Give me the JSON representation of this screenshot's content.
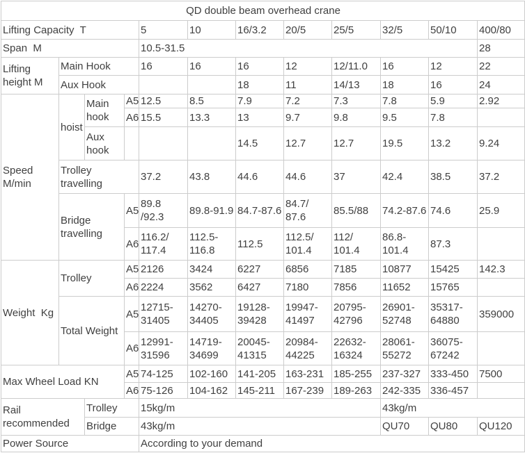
{
  "table": {
    "colors": {
      "text": "#404040",
      "border": "#cccccc",
      "background": "#ffffff"
    },
    "title": "QD double beam overhead crane",
    "rows": [
      {
        "name": "title-row",
        "cells": [
          {
            "t": "QD double beam overhead crane",
            "cs": 12,
            "center": true,
            "name": "table-title"
          }
        ]
      },
      {
        "name": "lifting-capacity-row",
        "cells": [
          {
            "t": "Lifting Capacity  T",
            "cs": 4,
            "name": "label-lifting-capacity"
          },
          {
            "t": "5",
            "name": "capacity-col-header"
          },
          {
            "t": "10",
            "name": "capacity-col-header"
          },
          {
            "t": "16/3.2",
            "name": "capacity-col-header"
          },
          {
            "t": "20/5",
            "name": "capacity-col-header"
          },
          {
            "t": "25/5",
            "name": "capacity-col-header"
          },
          {
            "t": "32/5",
            "name": "capacity-col-header"
          },
          {
            "t": "50/10",
            "name": "capacity-col-header"
          },
          {
            "t": "400/80",
            "name": "capacity-col-header"
          }
        ]
      },
      {
        "name": "span-row",
        "cells": [
          {
            "t": "Span  M",
            "cs": 4,
            "name": "label-span"
          },
          {
            "t": "10.5-31.5",
            "cs": 7
          },
          {
            "t": "28"
          }
        ]
      },
      {
        "name": "lifting-height-main-hook-row",
        "cells": [
          {
            "t": "Lifting\nheight M",
            "rs": 2,
            "name": "label-lifting-height"
          },
          {
            "t": "Main Hook",
            "cs": 3,
            "name": "label-main-hook"
          },
          {
            "t": "16"
          },
          {
            "t": "16"
          },
          {
            "t": "16"
          },
          {
            "t": "12"
          },
          {
            "t": "12/11.0"
          },
          {
            "t": "16"
          },
          {
            "t": "12"
          },
          {
            "t": "22"
          }
        ]
      },
      {
        "name": "lifting-height-aux-hook-row",
        "cells": [
          {
            "t": "Aux Hook",
            "cs": 3,
            "name": "label-aux-hook"
          },
          {
            "t": ""
          },
          {
            "t": ""
          },
          {
            "t": "18"
          },
          {
            "t": "11"
          },
          {
            "t": "14/13"
          },
          {
            "t": "18"
          },
          {
            "t": "16"
          },
          {
            "t": "24"
          }
        ]
      },
      {
        "name": "speed-hoist-main-a5-row",
        "cells": [
          {
            "t": "Speed\nM/min",
            "rs": 6,
            "name": "label-speed"
          },
          {
            "t": "hoist",
            "rs": 3,
            "name": "label-hoist"
          },
          {
            "t": "Main\nhook",
            "rs": 2,
            "name": "label-hoist-main-hook"
          },
          {
            "t": "A5",
            "name": "label-a5"
          },
          {
            "t": "12.5"
          },
          {
            "t": "8.5"
          },
          {
            "t": "7.9"
          },
          {
            "t": "7.2"
          },
          {
            "t": "7.3"
          },
          {
            "t": "7.8"
          },
          {
            "t": "5.9"
          },
          {
            "t": "2.92"
          }
        ]
      },
      {
        "name": "speed-hoist-main-a6-row",
        "cells": [
          {
            "t": "A6",
            "name": "label-a6"
          },
          {
            "t": "15.5"
          },
          {
            "t": "13.3"
          },
          {
            "t": "13"
          },
          {
            "t": "9.7"
          },
          {
            "t": "9.8"
          },
          {
            "t": "9.5"
          },
          {
            "t": "7.8"
          },
          {
            "t": ""
          }
        ]
      },
      {
        "name": "speed-hoist-aux-row",
        "cells": [
          {
            "t": "Aux\nhook",
            "name": "label-hoist-aux-hook"
          },
          {
            "t": ""
          },
          {
            "t": ""
          },
          {
            "t": ""
          },
          {
            "t": "14.5"
          },
          {
            "t": "12.7"
          },
          {
            "t": "12.7"
          },
          {
            "t": "19.5"
          },
          {
            "t": "13.2"
          },
          {
            "t": "9.24"
          }
        ]
      },
      {
        "name": "speed-trolley-travelling-row",
        "cells": [
          {
            "t": "Trolley\ntravelling",
            "cs": 3,
            "name": "label-trolley-travelling"
          },
          {
            "t": "37.2"
          },
          {
            "t": "43.8"
          },
          {
            "t": "44.6"
          },
          {
            "t": "44.6"
          },
          {
            "t": "37"
          },
          {
            "t": "42.4"
          },
          {
            "t": "38.5"
          },
          {
            "t": "37.2"
          }
        ]
      },
      {
        "name": "speed-bridge-a5-row",
        "cells": [
          {
            "t": "Bridge\ntravelling",
            "rs": 2,
            "cs": 2,
            "name": "label-bridge-travelling"
          },
          {
            "t": "A5",
            "name": "label-a5"
          },
          {
            "t": "89.8\n/92.3"
          },
          {
            "t": "89.8-91.9"
          },
          {
            "t": "84.7-87.6"
          },
          {
            "t": "84.7/\n87.6"
          },
          {
            "t": "85.5/88"
          },
          {
            "t": "74.2-87.6"
          },
          {
            "t": "74.6"
          },
          {
            "t": "25.9"
          }
        ]
      },
      {
        "name": "speed-bridge-a6-row",
        "cells": [
          {
            "t": "A6",
            "name": "label-a6"
          },
          {
            "t": "116.2/\n117.4"
          },
          {
            "t": "112.5-\n116.8"
          },
          {
            "t": "112.5"
          },
          {
            "t": "112.5/\n101.4"
          },
          {
            "t": "112/\n101.4"
          },
          {
            "t": "86.8-\n101.4"
          },
          {
            "t": "87.3"
          },
          {
            "t": ""
          }
        ]
      },
      {
        "name": "weight-trolley-a5-row",
        "cells": [
          {
            "t": "Weight  Kg",
            "rs": 4,
            "name": "label-weight"
          },
          {
            "t": "Trolley",
            "rs": 2,
            "cs": 2,
            "name": "label-trolley-weight"
          },
          {
            "t": "A5",
            "name": "label-a5"
          },
          {
            "t": "2126"
          },
          {
            "t": "3424"
          },
          {
            "t": "6227"
          },
          {
            "t": "6856"
          },
          {
            "t": "7185"
          },
          {
            "t": "10877"
          },
          {
            "t": "15425"
          },
          {
            "t": "142.3"
          }
        ]
      },
      {
        "name": "weight-trolley-a6-row",
        "cells": [
          {
            "t": "A6",
            "name": "label-a6"
          },
          {
            "t": "2224"
          },
          {
            "t": "3562"
          },
          {
            "t": "6427"
          },
          {
            "t": "7180"
          },
          {
            "t": "7856"
          },
          {
            "t": "11652"
          },
          {
            "t": "15765"
          },
          {
            "t": ""
          }
        ]
      },
      {
        "name": "weight-total-a5-row",
        "cells": [
          {
            "t": "Total Weight",
            "rs": 2,
            "cs": 2,
            "name": "label-total-weight"
          },
          {
            "t": "A5",
            "name": "label-a5"
          },
          {
            "t": "12715-\n31405"
          },
          {
            "t": "14270-\n34405"
          },
          {
            "t": "19128-\n39428"
          },
          {
            "t": "19947-\n41497"
          },
          {
            "t": "20795-\n42796"
          },
          {
            "t": "26901-\n52748"
          },
          {
            "t": "35317-\n64880"
          },
          {
            "t": "359000"
          }
        ]
      },
      {
        "name": "weight-total-a6-row",
        "cells": [
          {
            "t": "A6",
            "name": "label-a6"
          },
          {
            "t": "12991-\n31596"
          },
          {
            "t": "14719-\n34699"
          },
          {
            "t": "20045-\n41315"
          },
          {
            "t": "20984-\n44225"
          },
          {
            "t": "22632-\n16324"
          },
          {
            "t": "28061-\n55272"
          },
          {
            "t": "36075-\n67242"
          },
          {
            "t": ""
          }
        ]
      },
      {
        "name": "wheel-load-a5-row",
        "cells": [
          {
            "t": "Max Wheel Load KN",
            "rs": 2,
            "cs": 3,
            "name": "label-max-wheel-load"
          },
          {
            "t": "A5",
            "name": "label-a5"
          },
          {
            "t": "74-125"
          },
          {
            "t": "102-160"
          },
          {
            "t": "141-205"
          },
          {
            "t": "163-231"
          },
          {
            "t": "185-255"
          },
          {
            "t": "237-327"
          },
          {
            "t": "333-450"
          },
          {
            "t": "7500"
          }
        ]
      },
      {
        "name": "wheel-load-a6-row",
        "cells": [
          {
            "t": "A6",
            "name": "label-a6"
          },
          {
            "t": "75-126"
          },
          {
            "t": "104-162"
          },
          {
            "t": "145-211"
          },
          {
            "t": "167-239"
          },
          {
            "t": "189-263"
          },
          {
            "t": "242-335"
          },
          {
            "t": "336-457"
          },
          {
            "t": ""
          }
        ]
      },
      {
        "name": "rail-trolley-row",
        "cells": [
          {
            "t": "Rail\nrecommended",
            "rs": 2,
            "cs": 2,
            "name": "label-rail-recommended"
          },
          {
            "t": "Trolley",
            "cs": 2,
            "name": "label-rail-trolley"
          },
          {
            "t": "15kg/m",
            "cs": 5
          },
          {
            "t": "43kg/m",
            "cs": 3
          }
        ]
      },
      {
        "name": "rail-bridge-row",
        "cells": [
          {
            "t": "Bridge",
            "cs": 2,
            "name": "label-rail-bridge"
          },
          {
            "t": "43kg/m",
            "cs": 5
          },
          {
            "t": "QU70"
          },
          {
            "t": "QU80"
          },
          {
            "t": "QU120"
          }
        ]
      },
      {
        "name": "power-source-row",
        "cells": [
          {
            "t": "Power Source",
            "cs": 4,
            "name": "label-power-source"
          },
          {
            "t": "According to your demand",
            "cs": 8
          }
        ]
      }
    ]
  }
}
